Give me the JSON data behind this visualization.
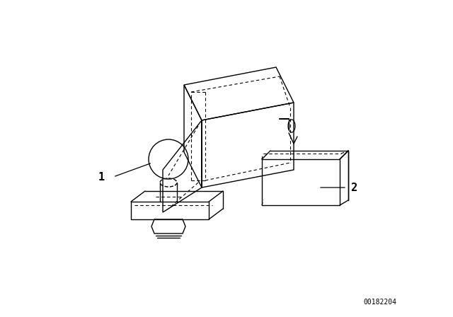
{
  "background_color": "#ffffff",
  "line_color": "#000000",
  "dashed_color": "#000000",
  "label1": "1",
  "label2": "2",
  "part_number": "00182204",
  "fig_width": 6.4,
  "fig_height": 4.48,
  "dpi": 100
}
